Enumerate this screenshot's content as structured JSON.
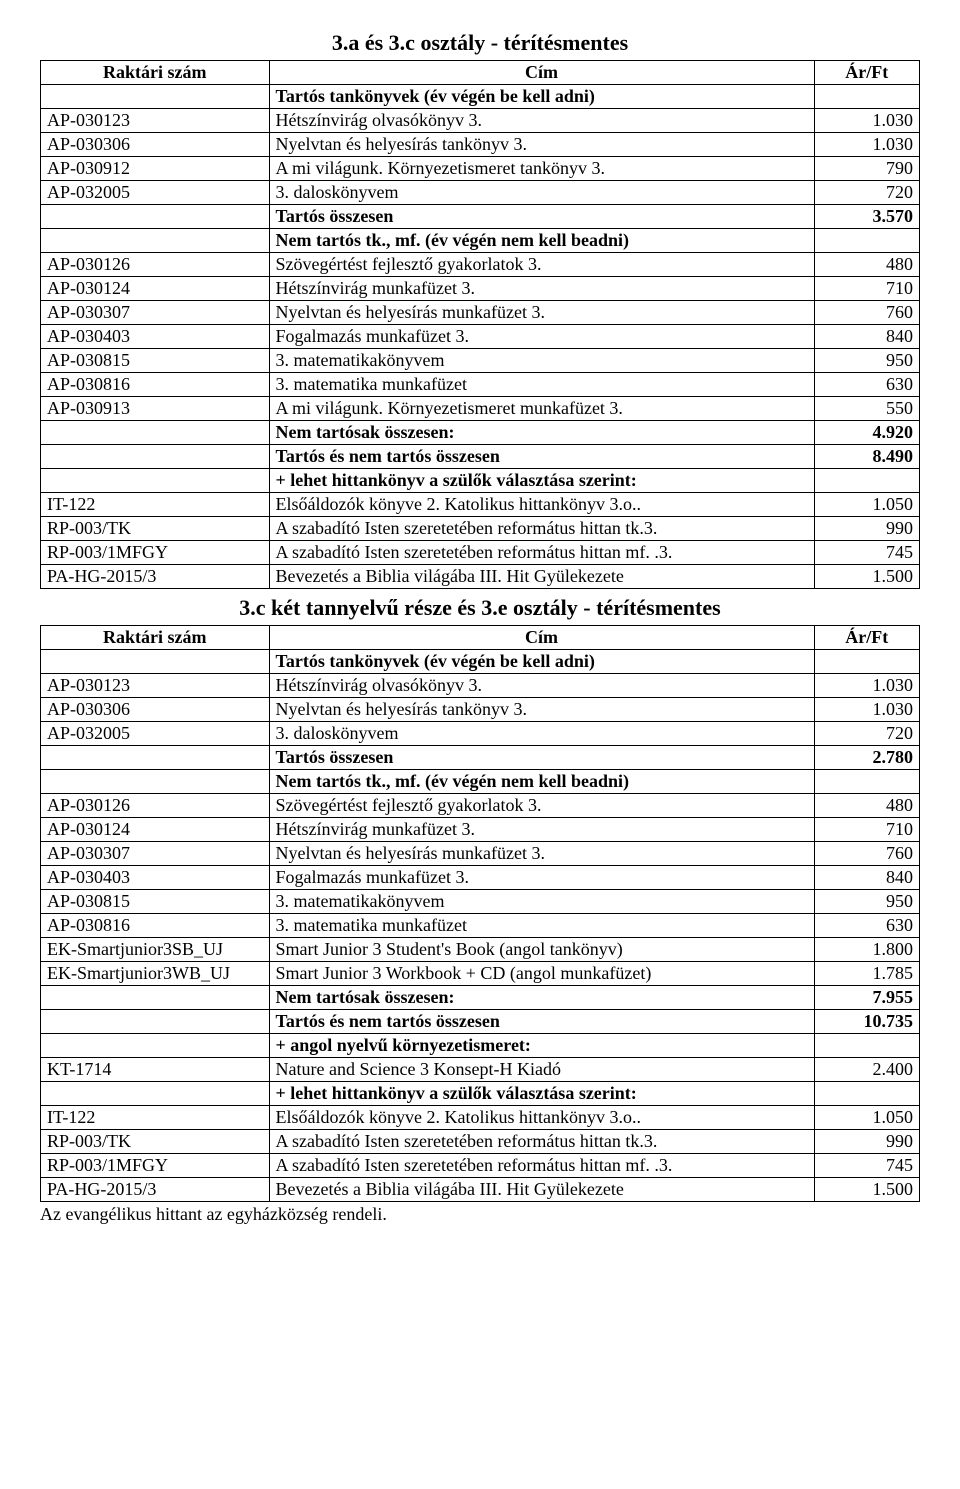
{
  "header_labels": {
    "code": "Raktári szám",
    "title": "Cím",
    "price": "Ár/Ft"
  },
  "section1": {
    "title": "3.a  és  3.c osztály - térítésmentes",
    "rows": [
      {
        "code": "",
        "title": "Tartós tankönyvek (év végén be kell adni)",
        "price": "",
        "bold": true,
        "center_title": true
      },
      {
        "code": "AP-030123",
        "title": "Hétszínvirág olvasókönyv 3.",
        "price": "1.030"
      },
      {
        "code": "AP-030306",
        "title": "Nyelvtan és helyesírás tankönyv 3.",
        "price": "1.030"
      },
      {
        "code": "AP-030912",
        "title": "A mi világunk. Környezetismeret tankönyv 3.",
        "price": "790"
      },
      {
        "code": "AP-032005",
        "title": "3. daloskönyvem",
        "price": "720"
      },
      {
        "code": "",
        "title": "Tartós összesen",
        "price": "3.570",
        "bold": true
      },
      {
        "code": "",
        "title": "Nem tartós tk., mf. (év végén nem kell beadni)",
        "price": "",
        "bold": true
      },
      {
        "code": "AP-030126",
        "title": "Szövegértést fejlesztő gyakorlatok 3.",
        "price": "480"
      },
      {
        "code": "AP-030124",
        "title": "Hétszínvirág munkafüzet 3.",
        "price": "710"
      },
      {
        "code": "AP-030307",
        "title": "Nyelvtan és helyesírás munkafüzet 3.",
        "price": "760"
      },
      {
        "code": "AP-030403",
        "title": "Fogalmazás munkafüzet 3.",
        "price": "840"
      },
      {
        "code": "AP-030815",
        "title": "3. matematikakönyvem",
        "price": "950"
      },
      {
        "code": "AP-030816",
        "title": "3. matematika munkafüzet",
        "price": "630"
      },
      {
        "code": "AP-030913",
        "title": "A mi világunk. Környezetismeret munkafüzet 3.",
        "price": "550"
      },
      {
        "code": "",
        "title": "Nem tartósak összesen:",
        "price": "4.920",
        "bold": true
      },
      {
        "code": "",
        "title": "Tartós és nem tartós összesen",
        "price": "8.490",
        "bold": true
      },
      {
        "code": "",
        "title": "+ lehet hittankönyv a szülők választása szerint:",
        "price": "",
        "bold": true
      },
      {
        "code": "IT-122",
        "title": "Elsőáldozók könyve 2. Katolikus hittankönyv 3.o..",
        "price": "1.050"
      },
      {
        "code": "RP-003/TK",
        "title": "A szabadító Isten szeretetében református hittan  tk.3.",
        "price": "990"
      },
      {
        "code": "RP-003/1MFGY",
        "title": "A szabadító Isten szeretetében református hittan  mf. .3.",
        "price": "745"
      },
      {
        "code": "PA-HG-2015/3",
        "title": "Bevezetés a Biblia világába III. Hit Gyülekezete",
        "price": "1.500"
      }
    ]
  },
  "section2": {
    "title": "3.c két tannyelvű része és 3.e osztály - térítésmentes",
    "rows": [
      {
        "code": "",
        "title": "Tartós tankönyvek (év végén be kell adni)",
        "price": "",
        "bold": true,
        "center_title": true
      },
      {
        "code": "AP-030123",
        "title": "Hétszínvirág olvasókönyv 3.",
        "price": "1.030"
      },
      {
        "code": "AP-030306",
        "title": "Nyelvtan és helyesírás tankönyv 3.",
        "price": "1.030"
      },
      {
        "code": "AP-032005",
        "title": "3. daloskönyvem",
        "price": "720"
      },
      {
        "code": "",
        "title": "Tartós összesen",
        "price": "2.780",
        "bold": true
      },
      {
        "code": "",
        "title": "Nem tartós tk., mf. (év végén nem kell beadni)",
        "price": "",
        "bold": true
      },
      {
        "code": "AP-030126",
        "title": "Szövegértést fejlesztő gyakorlatok 3.",
        "price": "480"
      },
      {
        "code": "AP-030124",
        "title": "Hétszínvirág munkafüzet 3.",
        "price": "710"
      },
      {
        "code": "AP-030307",
        "title": "Nyelvtan és helyesírás munkafüzet 3.",
        "price": "760"
      },
      {
        "code": "AP-030403",
        "title": "Fogalmazás munkafüzet 3.",
        "price": "840"
      },
      {
        "code": "AP-030815",
        "title": "3. matematikakönyvem",
        "price": "950"
      },
      {
        "code": "AP-030816",
        "title": "3. matematika munkafüzet",
        "price": "630"
      },
      {
        "code": "EK-Smartjunior3SB_UJ",
        "title": "Smart Junior 3 Student's Book (angol tankönyv)",
        "price": "1.800"
      },
      {
        "code": "EK-Smartjunior3WB_UJ",
        "title": "Smart Junior 3 Workbook + CD (angol munkafüzet)",
        "price": "1.785"
      },
      {
        "code": "",
        "title": "Nem tartósak összesen:",
        "price": "7.955",
        "bold": true
      },
      {
        "code": "",
        "title": "Tartós és nem tartós összesen",
        "price": "10.735",
        "bold": true
      },
      {
        "code": "",
        "title": "+ angol nyelvű környezetismeret:",
        "price": "",
        "bold": true
      },
      {
        "code": "KT-1714",
        "title": "Nature and Science 3 Konsept-H Kiadó",
        "price": "2.400"
      },
      {
        "code": "",
        "title": "+ lehet hittankönyv a szülők választása szerint:",
        "price": "",
        "bold": true
      },
      {
        "code": "IT-122",
        "title": "Elsőáldozók könyve 2. Katolikus hittankönyv 3.o..",
        "price": "1.050"
      },
      {
        "code": "RP-003/TK",
        "title": "A szabadító Isten szeretetében református hittan  tk.3.",
        "price": "990"
      },
      {
        "code": "RP-003/1MFGY",
        "title": "A szabadító Isten szeretetében református hittan  mf. .3.",
        "price": "745"
      },
      {
        "code": "PA-HG-2015/3",
        "title": "Bevezetés a Biblia világába III. Hit Gyülekezete",
        "price": "1.500"
      }
    ]
  },
  "footer_note": "Az evangélikus hittant az egyházközség rendeli."
}
